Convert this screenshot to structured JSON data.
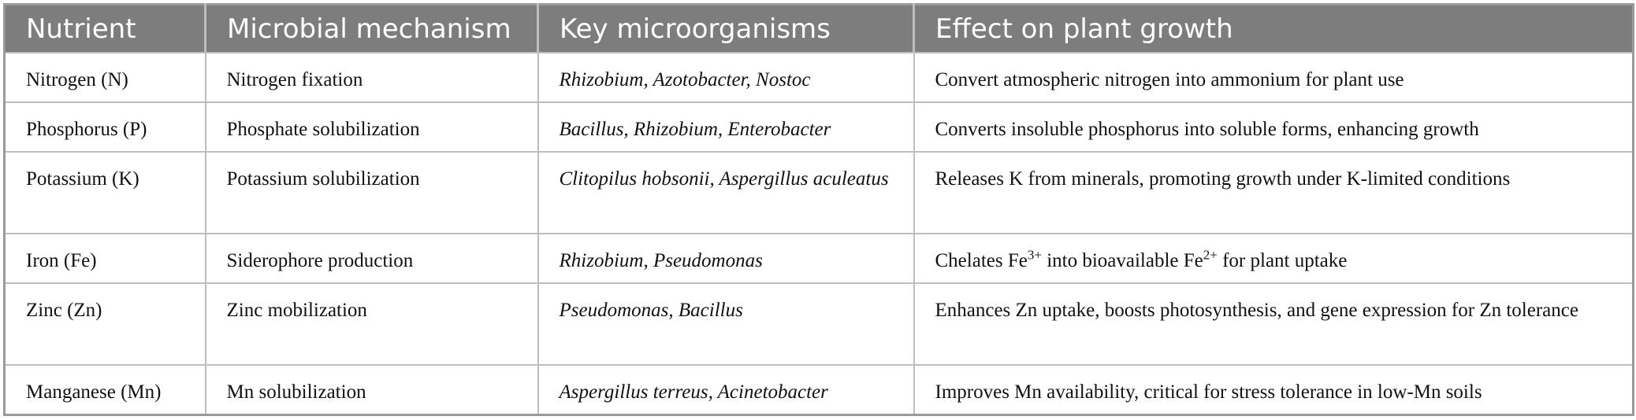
{
  "headers": [
    "Nutrient",
    "Microbial mechanism",
    "Key microorganisms",
    "Effect on plant growth"
  ],
  "rows": [
    {
      "nutrient": "Nitrogen (N)",
      "mechanism": "Nitrogen fixation",
      "organisms": "Rhizobium, Azotobacter, Nostoc",
      "effect": "Convert atmospheric nitrogen into ammonium for plant use"
    },
    {
      "nutrient": "Phosphorus (P)",
      "mechanism": "Phosphate solubilization",
      "organisms": "Bacillus, Rhizobium, Enterobacter",
      "effect": "Converts insoluble phosphorus into soluble forms, enhancing growth"
    },
    {
      "nutrient": "Potassium (K)",
      "mechanism": "Potassium solubilization",
      "organisms": "Clitopilus hobsonii, Aspergillus aculeatus",
      "effect": "Releases K from minerals, promoting growth under K-limited conditions"
    },
    {
      "nutrient": "Iron (Fe)",
      "mechanism": "Siderophore production",
      "organisms": "Rhizobium, Pseudomonas",
      "effect_parts": {
        "a": "Chelates Fe",
        "sup1": "3+",
        "b": " into bioavailable Fe",
        "sup2": "2+",
        "c": " for plant uptake"
      }
    },
    {
      "nutrient": "Zinc (Zn)",
      "mechanism": "Zinc mobilization",
      "organisms": "Pseudomonas, Bacillus",
      "effect": "Enhances Zn uptake, boosts photosynthesis, and gene expression for Zn tolerance"
    },
    {
      "nutrient": "Manganese (Mn)",
      "mechanism": "Mn solubilization",
      "organisms": "Aspergillus terreus, Acinetobacter",
      "effect": "Improves Mn availability, critical for stress tolerance in low-Mn soils"
    }
  ]
}
